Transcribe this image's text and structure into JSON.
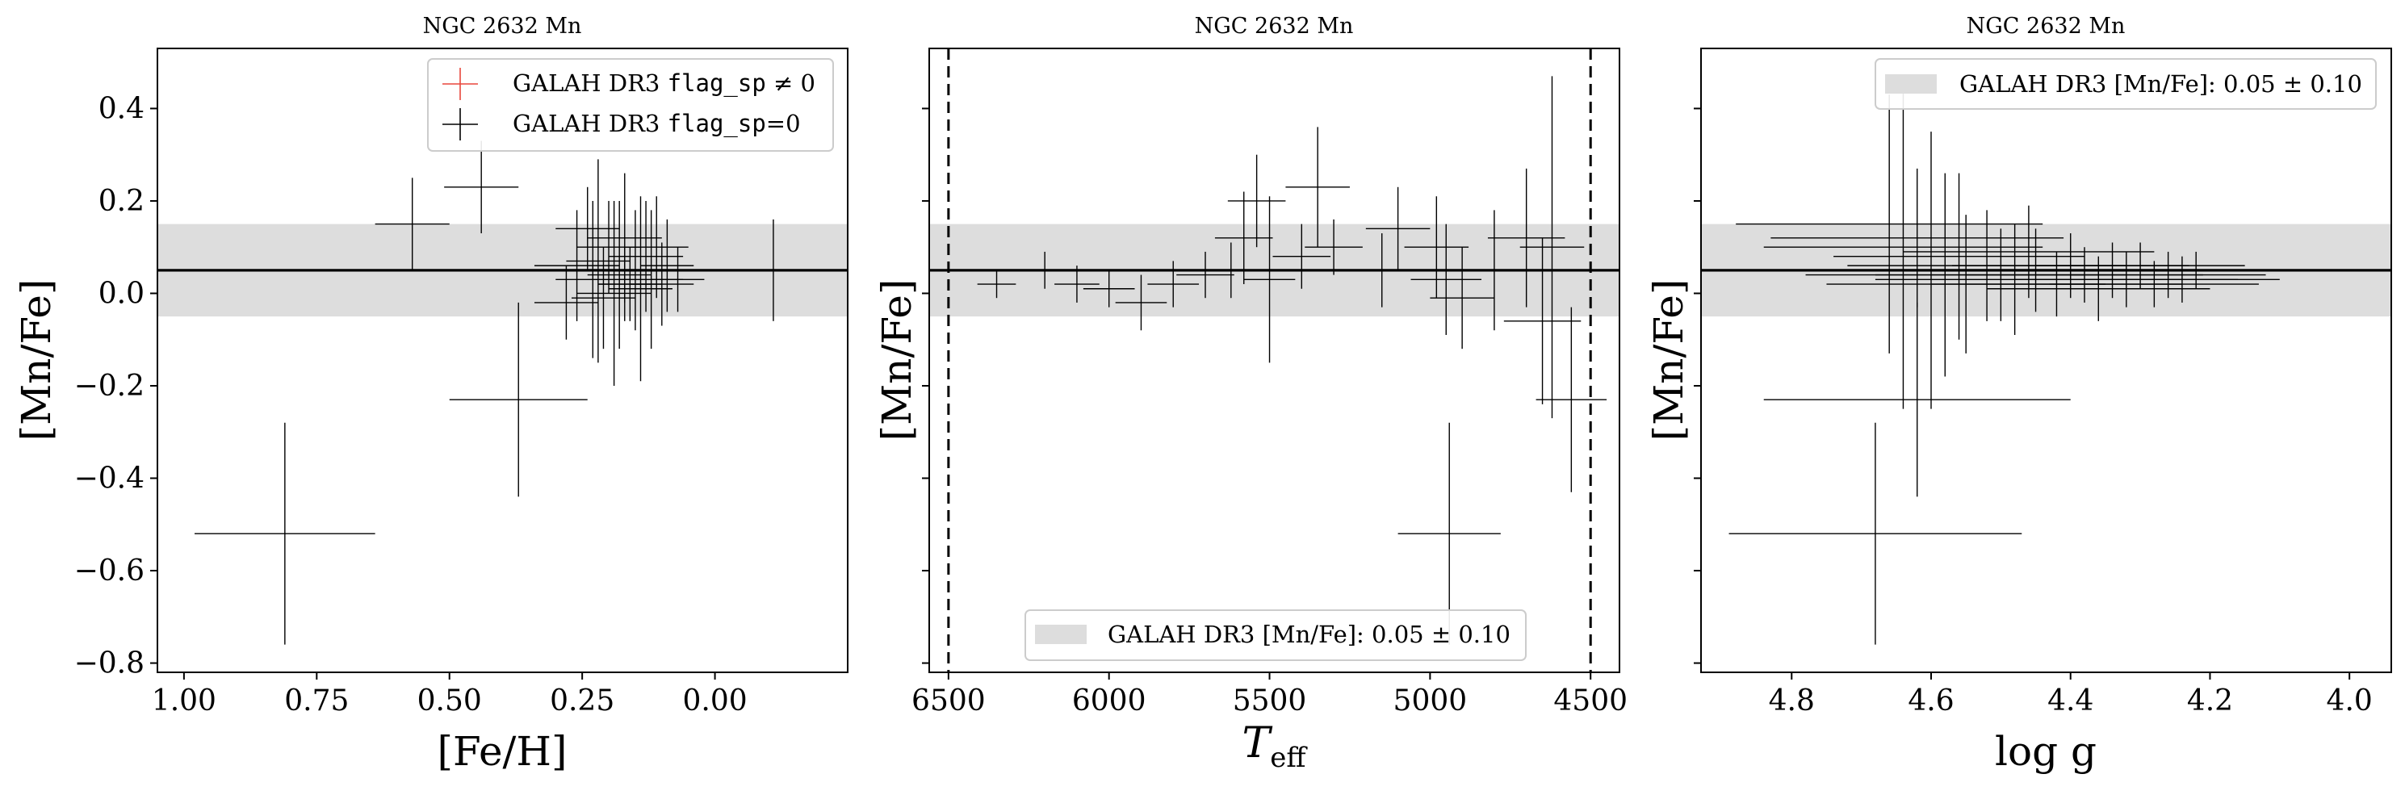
{
  "figure": {
    "panels": [
      {
        "title": "NGC 2632 Mn",
        "xlabel": "[Fe/H]",
        "ylabel": "[Mn/Fe]"
      },
      {
        "title": "NGC 2632 Mn",
        "xlabel": "T",
        "xlabel_sub": "eff",
        "ylabel": "[Mn/Fe]"
      },
      {
        "title": "NGC 2632 Mn",
        "xlabel": "log g",
        "ylabel": "[Mn/Fe]"
      }
    ],
    "legend_flag_nonzero": {
      "pre": "GALAH DR3 ",
      "code": "flag_sp",
      "post": " ≠ 0"
    },
    "legend_flag_zero": {
      "pre": "GALAH DR3 ",
      "code": "flag_sp",
      "post": "=0"
    },
    "legend_band": "GALAH DR3 [Mn/Fe]: 0.05 ± 0.10",
    "colors": {
      "flag_nonzero": "#e8473c",
      "flag_zero": "#000000",
      "band": "#dddddd",
      "reference_line": "#000000"
    }
  },
  "chart_data": [
    {
      "type": "scatter",
      "title": "NGC 2632 Mn",
      "xlabel": "[Fe/H]",
      "ylabel": "[Mn/Fe]",
      "xlim": [
        1.05,
        -0.25
      ],
      "ylim": [
        -0.82,
        0.53
      ],
      "x_ticks": [
        1.0,
        0.75,
        0.5,
        0.25,
        0.0
      ],
      "x_tick_labels": [
        "1.00",
        "0.75",
        "0.50",
        "0.25",
        "0.00"
      ],
      "y_ticks": [
        0.4,
        0.2,
        0.0,
        -0.2,
        -0.4,
        -0.6,
        -0.8
      ],
      "y_tick_labels": [
        "0.4",
        "0.2",
        "0.0",
        "−0.2",
        "−0.4",
        "−0.6",
        "−0.8"
      ],
      "reference": {
        "value": 0.05,
        "band": [
          -0.05,
          0.15
        ]
      },
      "legend": "top-right",
      "series": [
        {
          "name": "GALAH DR3 flag_sp=0",
          "points": [
            {
              "x": 0.81,
              "y": -0.52,
              "xerr": 0.17,
              "yerr": 0.24
            },
            {
              "x": 0.37,
              "y": -0.23,
              "xerr": 0.13,
              "yerr": 0.21
            },
            {
              "x": 0.57,
              "y": 0.15,
              "xerr": 0.07,
              "yerr": 0.1
            },
            {
              "x": 0.44,
              "y": 0.23,
              "xerr": 0.07,
              "yerr": 0.1
            },
            {
              "x": -0.11,
              "y": 0.05,
              "xerr": 0.06,
              "yerr": 0.11
            },
            {
              "x": 0.26,
              "y": 0.06,
              "xerr": 0.08,
              "yerr": 0.12
            },
            {
              "x": 0.23,
              "y": 0.03,
              "xerr": 0.07,
              "yerr": 0.17
            },
            {
              "x": 0.22,
              "y": 0.07,
              "xerr": 0.06,
              "yerr": 0.22
            },
            {
              "x": 0.2,
              "y": 0.1,
              "xerr": 0.06,
              "yerr": 0.1
            },
            {
              "x": 0.19,
              "y": 0.0,
              "xerr": 0.07,
              "yerr": 0.2
            },
            {
              "x": 0.18,
              "y": 0.04,
              "xerr": 0.06,
              "yerr": 0.16
            },
            {
              "x": 0.17,
              "y": 0.12,
              "xerr": 0.07,
              "yerr": 0.14
            },
            {
              "x": 0.16,
              "y": 0.02,
              "xerr": 0.06,
              "yerr": 0.08
            },
            {
              "x": 0.15,
              "y": 0.05,
              "xerr": 0.06,
              "yerr": 0.13
            },
            {
              "x": 0.14,
              "y": 0.01,
              "xerr": 0.06,
              "yerr": 0.2
            },
            {
              "x": 0.13,
              "y": 0.08,
              "xerr": 0.07,
              "yerr": 0.12
            },
            {
              "x": 0.12,
              "y": 0.03,
              "xerr": 0.06,
              "yerr": 0.15
            },
            {
              "x": 0.11,
              "y": 0.1,
              "xerr": 0.06,
              "yerr": 0.11
            },
            {
              "x": 0.1,
              "y": 0.02,
              "xerr": 0.06,
              "yerr": 0.09
            },
            {
              "x": 0.09,
              "y": 0.06,
              "xerr": 0.05,
              "yerr": 0.1
            },
            {
              "x": 0.28,
              "y": -0.02,
              "xerr": 0.06,
              "yerr": 0.08
            },
            {
              "x": 0.24,
              "y": 0.14,
              "xerr": 0.06,
              "yerr": 0.09
            },
            {
              "x": 0.21,
              "y": -0.01,
              "xerr": 0.06,
              "yerr": 0.11
            },
            {
              "x": 0.17,
              "y": 0.02,
              "xerr": 0.05,
              "yerr": 0.08
            },
            {
              "x": 0.07,
              "y": 0.03,
              "xerr": 0.05,
              "yerr": 0.07
            }
          ]
        },
        {
          "name": "GALAH DR3 flag_sp ≠ 0",
          "points": []
        }
      ]
    },
    {
      "type": "scatter",
      "title": "NGC 2632 Mn",
      "xlabel": "T_eff",
      "ylabel": "[Mn/Fe]",
      "xlim": [
        6560,
        4410
      ],
      "ylim": [
        -0.82,
        0.53
      ],
      "x_ticks": [
        6500,
        6000,
        5500,
        5000,
        4500
      ],
      "x_tick_labels": [
        "6500",
        "6000",
        "5500",
        "5000",
        "4500"
      ],
      "vlines": [
        6500,
        4500
      ],
      "reference": {
        "value": 0.05,
        "band": [
          -0.05,
          0.15
        ]
      },
      "legend": "bottom-center",
      "series": [
        {
          "name": "GALAH DR3 flag_sp=0",
          "points": [
            {
              "x": 6350,
              "y": 0.02,
              "xerr": 60,
              "yerr": 0.03
            },
            {
              "x": 6200,
              "y": 0.05,
              "xerr": 70,
              "yerr": 0.04
            },
            {
              "x": 6100,
              "y": 0.02,
              "xerr": 70,
              "yerr": 0.04
            },
            {
              "x": 6000,
              "y": 0.01,
              "xerr": 80,
              "yerr": 0.04
            },
            {
              "x": 5900,
              "y": -0.02,
              "xerr": 80,
              "yerr": 0.06
            },
            {
              "x": 5800,
              "y": 0.02,
              "xerr": 80,
              "yerr": 0.05
            },
            {
              "x": 5700,
              "y": 0.04,
              "xerr": 90,
              "yerr": 0.05
            },
            {
              "x": 5580,
              "y": 0.12,
              "xerr": 90,
              "yerr": 0.1
            },
            {
              "x": 5540,
              "y": 0.2,
              "xerr": 90,
              "yerr": 0.1
            },
            {
              "x": 5500,
              "y": 0.03,
              "xerr": 80,
              "yerr": 0.18
            },
            {
              "x": 5350,
              "y": 0.23,
              "xerr": 100,
              "yerr": 0.13
            },
            {
              "x": 5300,
              "y": 0.1,
              "xerr": 90,
              "yerr": 0.06
            },
            {
              "x": 5100,
              "y": 0.14,
              "xerr": 100,
              "yerr": 0.09
            },
            {
              "x": 4980,
              "y": 0.1,
              "xerr": 100,
              "yerr": 0.11
            },
            {
              "x": 4950,
              "y": 0.03,
              "xerr": 110,
              "yerr": 0.12
            },
            {
              "x": 4900,
              "y": -0.01,
              "xerr": 100,
              "yerr": 0.11
            },
            {
              "x": 4800,
              "y": 0.05,
              "xerr": 110,
              "yerr": 0.13
            },
            {
              "x": 4700,
              "y": 0.12,
              "xerr": 120,
              "yerr": 0.15
            },
            {
              "x": 4650,
              "y": -0.06,
              "xerr": 120,
              "yerr": 0.18
            },
            {
              "x": 4620,
              "y": 0.1,
              "xerr": 100,
              "yerr": 0.37
            },
            {
              "x": 4560,
              "y": -0.23,
              "xerr": 110,
              "yerr": 0.2
            },
            {
              "x": 4940,
              "y": -0.52,
              "xerr": 160,
              "yerr": 0.24
            },
            {
              "x": 5150,
              "y": 0.05,
              "xerr": 90,
              "yerr": 0.08
            },
            {
              "x": 5400,
              "y": 0.08,
              "xerr": 90,
              "yerr": 0.07
            },
            {
              "x": 5620,
              "y": 0.05,
              "xerr": 80,
              "yerr": 0.06
            }
          ]
        },
        {
          "name": "GALAH DR3 flag_sp ≠ 0",
          "points": []
        }
      ]
    },
    {
      "type": "scatter",
      "title": "NGC 2632 Mn",
      "xlabel": "log g",
      "ylabel": "[Mn/Fe]",
      "xlim": [
        4.93,
        3.94
      ],
      "ylim": [
        -0.82,
        0.53
      ],
      "x_ticks": [
        4.8,
        4.6,
        4.4,
        4.2,
        4.0
      ],
      "x_tick_labels": [
        "4.8",
        "4.6",
        "4.4",
        "4.2",
        "4.0"
      ],
      "reference": {
        "value": 0.05,
        "band": [
          -0.05,
          0.15
        ]
      },
      "legend": "top-right",
      "series": [
        {
          "name": "GALAH DR3 flag_sp=0",
          "points": [
            {
              "x": 4.68,
              "y": -0.52,
              "xerr": 0.21,
              "yerr": 0.24
            },
            {
              "x": 4.62,
              "y": -0.23,
              "xerr": 0.22,
              "yerr": 0.21
            },
            {
              "x": 4.66,
              "y": 0.15,
              "xerr": 0.22,
              "yerr": 0.28
            },
            {
              "x": 4.64,
              "y": 0.1,
              "xerr": 0.2,
              "yerr": 0.35
            },
            {
              "x": 4.6,
              "y": 0.05,
              "xerr": 0.22,
              "yerr": 0.3
            },
            {
              "x": 4.58,
              "y": 0.04,
              "xerr": 0.2,
              "yerr": 0.22
            },
            {
              "x": 4.56,
              "y": 0.08,
              "xerr": 0.18,
              "yerr": 0.18
            },
            {
              "x": 4.55,
              "y": 0.02,
              "xerr": 0.2,
              "yerr": 0.15
            },
            {
              "x": 4.52,
              "y": 0.06,
              "xerr": 0.2,
              "yerr": 0.12
            },
            {
              "x": 4.5,
              "y": 0.04,
              "xerr": 0.18,
              "yerr": 0.1
            },
            {
              "x": 4.48,
              "y": 0.03,
              "xerr": 0.2,
              "yerr": 0.12
            },
            {
              "x": 4.45,
              "y": 0.05,
              "xerr": 0.18,
              "yerr": 0.09
            },
            {
              "x": 4.42,
              "y": 0.02,
              "xerr": 0.18,
              "yerr": 0.07
            },
            {
              "x": 4.4,
              "y": 0.06,
              "xerr": 0.17,
              "yerr": 0.07
            },
            {
              "x": 4.38,
              "y": 0.04,
              "xerr": 0.17,
              "yerr": 0.06
            },
            {
              "x": 4.36,
              "y": 0.01,
              "xerr": 0.16,
              "yerr": 0.07
            },
            {
              "x": 4.34,
              "y": 0.05,
              "xerr": 0.17,
              "yerr": 0.06
            },
            {
              "x": 4.32,
              "y": 0.03,
              "xerr": 0.16,
              "yerr": 0.06
            },
            {
              "x": 4.3,
              "y": 0.06,
              "xerr": 0.15,
              "yerr": 0.05
            },
            {
              "x": 4.28,
              "y": 0.02,
              "xerr": 0.15,
              "yerr": 0.05
            },
            {
              "x": 4.26,
              "y": 0.04,
              "xerr": 0.14,
              "yerr": 0.05
            },
            {
              "x": 4.24,
              "y": 0.03,
              "xerr": 0.14,
              "yerr": 0.05
            },
            {
              "x": 4.22,
              "y": 0.05,
              "xerr": 0.13,
              "yerr": 0.04
            },
            {
              "x": 4.62,
              "y": 0.12,
              "xerr": 0.21,
              "yerr": 0.15
            },
            {
              "x": 4.46,
              "y": 0.09,
              "xerr": 0.18,
              "yerr": 0.1
            }
          ]
        },
        {
          "name": "GALAH DR3 flag_sp ≠ 0",
          "points": []
        }
      ]
    }
  ]
}
